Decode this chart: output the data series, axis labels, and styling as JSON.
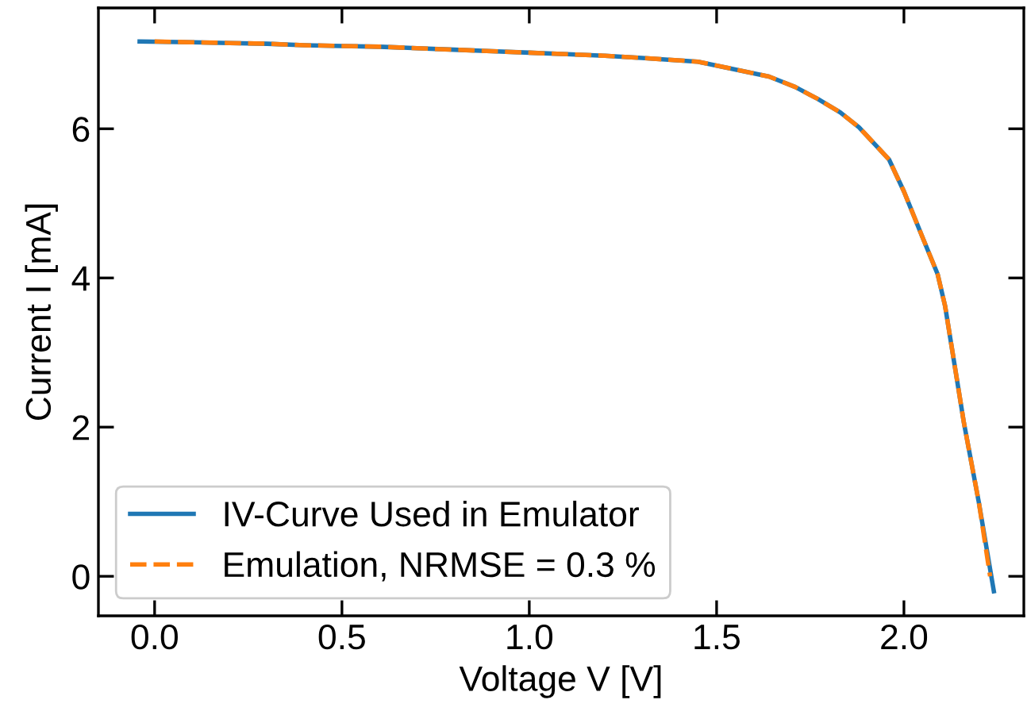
{
  "chart_data": {
    "type": "line",
    "xlabel": "Voltage V [V]",
    "ylabel": "Current I [mA]",
    "xlim": [
      -0.15,
      2.32
    ],
    "xticks": [
      {
        "value": 0,
        "label": "0.0"
      },
      0.5,
      {
        "value": 1,
        "label": "1.0"
      },
      1.5,
      {
        "value": 2,
        "label": "2.0"
      }
    ],
    "ylim": [
      -0.53,
      7.62
    ],
    "yticks": [
      0,
      2,
      4,
      6
    ],
    "grid": false,
    "legend": "bottom left",
    "series": [
      {
        "name": "IV-Curve Used in Emulator",
        "color": "#1f77b4",
        "line_style": "solid",
        "x": [
          -0.04,
          0.1,
          0.2,
          0.3,
          0.4,
          0.5,
          0.6,
          0.7,
          0.8,
          0.9,
          1.0,
          1.1,
          1.2,
          1.3,
          1.45,
          1.64,
          1.71,
          1.77,
          1.83,
          1.88,
          1.96,
          2.0,
          2.05,
          2.09,
          2.11,
          2.16,
          2.2,
          2.24
        ],
        "values": [
          7.17,
          7.16,
          7.15,
          7.14,
          7.12,
          7.11,
          7.1,
          7.08,
          7.06,
          7.04,
          7.02,
          7.0,
          6.98,
          6.95,
          6.9,
          6.7,
          6.56,
          6.4,
          6.22,
          6.02,
          5.59,
          5.16,
          4.54,
          4.05,
          3.62,
          2.06,
          0.99,
          -0.2
        ]
      },
      {
        "name": "Emulation, NRMSE = 0.3 %",
        "color": "#ff7f0e",
        "line_style": "dashed",
        "x": [
          0.0,
          0.1,
          0.2,
          0.3,
          0.4,
          0.5,
          0.6,
          0.7,
          0.8,
          0.9,
          1.0,
          1.1,
          1.2,
          1.3,
          1.45,
          1.64,
          1.71,
          1.77,
          1.83,
          1.88,
          1.96,
          2.0,
          2.05,
          2.09,
          2.11,
          2.16,
          2.2,
          2.23
        ],
        "values": [
          7.17,
          7.16,
          7.15,
          7.14,
          7.12,
          7.11,
          7.1,
          7.08,
          7.06,
          7.04,
          7.02,
          7.0,
          6.98,
          6.95,
          6.9,
          6.7,
          6.56,
          6.4,
          6.22,
          6.02,
          5.59,
          5.16,
          4.54,
          4.05,
          3.62,
          2.06,
          0.99,
          0.0
        ]
      }
    ]
  }
}
